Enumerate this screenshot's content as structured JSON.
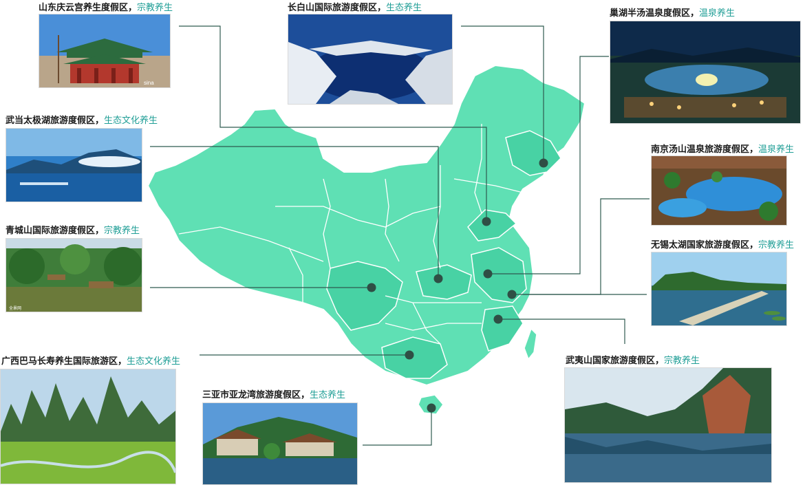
{
  "theme": {
    "map_fill": "#5fe0b4",
    "map_highlight": "#48d2a4",
    "border": "#ffffff",
    "marker": "#2f4f45",
    "leader": "#2f5a4f",
    "name_color": "#1a1a1a",
    "category_color": "#1f9e96"
  },
  "resorts": [
    {
      "name": "山东庆云宫养生度假区",
      "sep": "，",
      "category": "宗教养生",
      "photo": "temple"
    },
    {
      "name": "长白山国际旅游度假区",
      "sep": "，",
      "category": "生态养生",
      "photo": "crater-lake"
    },
    {
      "name": "巢湖半汤温泉度假区",
      "sep": "，",
      "category": "温泉养生",
      "photo": "night-resort"
    },
    {
      "name": "武当太极湖旅游度假区",
      "sep": "，",
      "category": "生态文化养生",
      "photo": "mist-lake"
    },
    {
      "name": "南京汤山温泉旅游度假区",
      "sep": "，",
      "category": "温泉养生",
      "photo": "hot-spring"
    },
    {
      "name": "青城山国际旅游度假区",
      "sep": "，",
      "category": "宗教养生",
      "photo": "forest-lake"
    },
    {
      "name": "无锡太湖国家旅游度假区",
      "sep": "，",
      "category": "宗教养生",
      "photo": "lake-pier"
    },
    {
      "name": "广西巴马长寿养生国际旅游区",
      "sep": "，",
      "category": "生态文化养生",
      "photo": "karst"
    },
    {
      "name": "三亚市亚龙湾旅游度假区",
      "sep": "，",
      "category": "生态养生",
      "photo": "tropical-villa"
    },
    {
      "name": "武夷山国家旅游度假区",
      "sep": "，",
      "category": "宗教养生",
      "photo": "cliff-river"
    }
  ],
  "photo_watermarks": {
    "temple": "sina",
    "forest-lake": "全景网"
  }
}
